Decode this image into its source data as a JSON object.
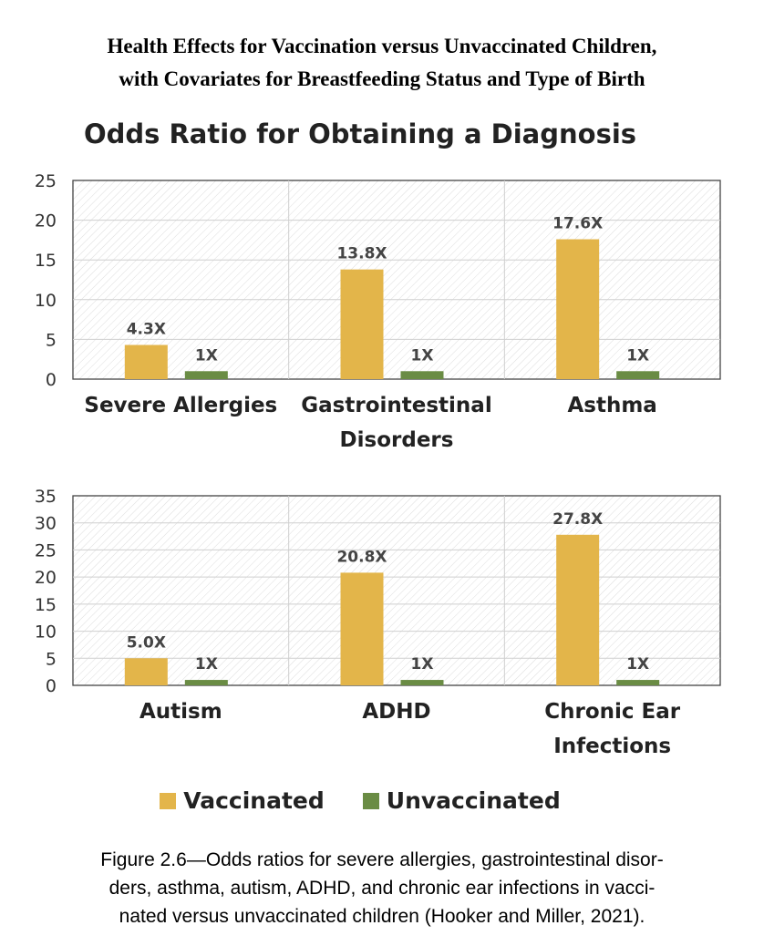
{
  "heading": {
    "line1": "Health Effects for Vaccination versus Unvaccinated Children,",
    "line2": "with Covariates for Breastfeeding Status and Type of Birth"
  },
  "chart_title": "Odds Ratio for Obtaining a Diagnosis",
  "legend": [
    {
      "label": "Vaccinated",
      "color": "#e3b54a"
    },
    {
      "label": "Unvaccinated",
      "color": "#6a8c44"
    }
  ],
  "caption": {
    "line1": "Figure 2.6—Odds ratios for severe allergies, gastrointestinal disor-",
    "line2": "ders, asthma, autism, ADHD, and chronic ear infections in vacci-",
    "line3": "nated versus unvaccinated children (Hooker and Miller, 2021)."
  },
  "chart_data": [
    {
      "type": "bar",
      "categories": [
        [
          "Severe Allergies"
        ],
        [
          "Gastrointestinal",
          "Disorders"
        ],
        [
          "Asthma"
        ]
      ],
      "series": [
        {
          "name": "Vaccinated",
          "values": [
            4.3,
            13.8,
            17.6
          ],
          "labels": [
            "4.3X",
            "13.8X",
            "17.6X"
          ]
        },
        {
          "name": "Unvaccinated",
          "values": [
            1,
            1,
            1
          ],
          "labels": [
            "1X",
            "1X",
            "1X"
          ]
        }
      ],
      "ylim": [
        0,
        25
      ],
      "yticks": [
        0,
        5,
        10,
        15,
        20,
        25
      ]
    },
    {
      "type": "bar",
      "categories": [
        [
          "Autism"
        ],
        [
          "ADHD"
        ],
        [
          "Chronic Ear",
          "Infections"
        ]
      ],
      "series": [
        {
          "name": "Vaccinated",
          "values": [
            5.0,
            20.8,
            27.8
          ],
          "labels": [
            "5.0X",
            "20.8X",
            "27.8X"
          ]
        },
        {
          "name": "Unvaccinated",
          "values": [
            1,
            1,
            1
          ],
          "labels": [
            "1X",
            "1X",
            "1X"
          ]
        }
      ],
      "ylim": [
        0,
        35
      ],
      "yticks": [
        0,
        5,
        10,
        15,
        20,
        25,
        30,
        35
      ]
    }
  ]
}
